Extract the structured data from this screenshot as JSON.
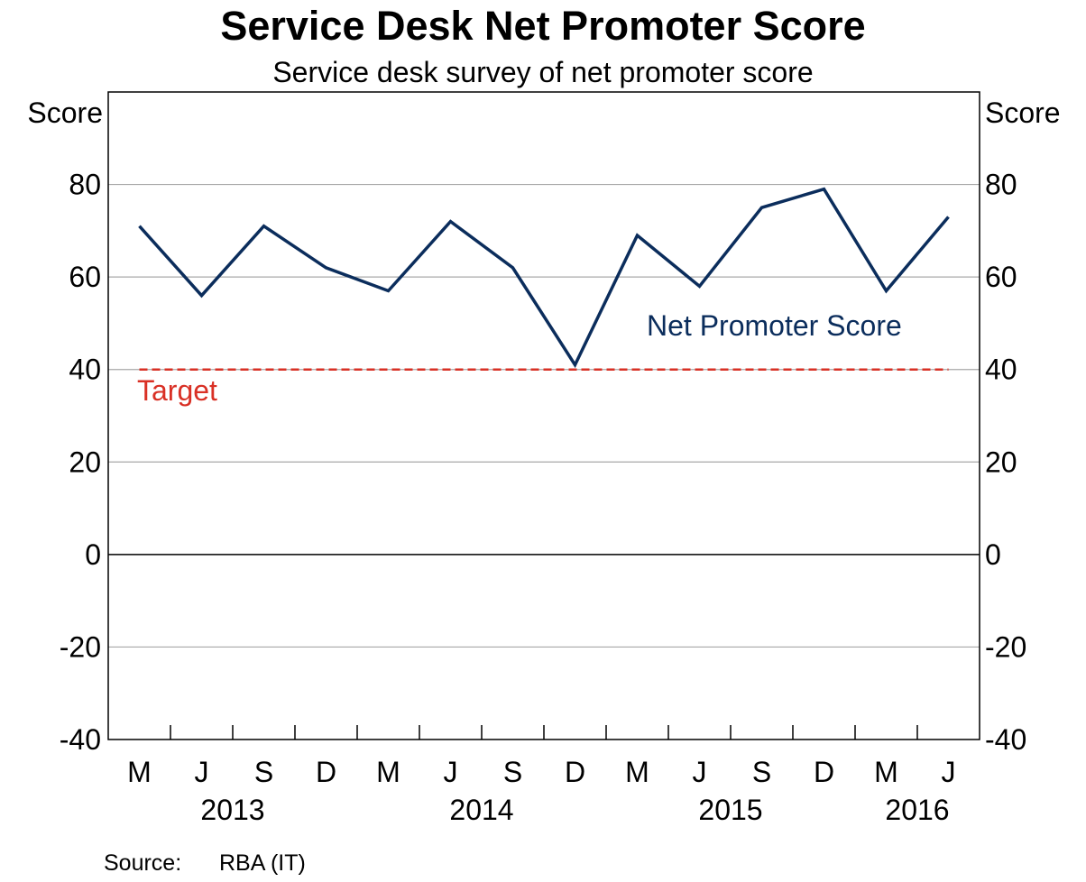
{
  "chart_data": {
    "type": "line",
    "title": "Service Desk Net Promoter Score",
    "subtitle": "Service desk survey of net promoter score",
    "ylabel_left": "Score",
    "ylabel_right": "Score",
    "ylim": [
      -40,
      100
    ],
    "yticks": [
      -40,
      -20,
      0,
      20,
      40,
      60,
      80
    ],
    "x_periods": [
      "M",
      "J",
      "S",
      "D",
      "M",
      "J",
      "S",
      "D",
      "M",
      "J",
      "S",
      "D",
      "M",
      "J"
    ],
    "years": [
      {
        "label": "2013",
        "start": 0,
        "end": 4
      },
      {
        "label": "2014",
        "start": 4,
        "end": 8
      },
      {
        "label": "2015",
        "start": 8,
        "end": 12
      },
      {
        "label": "2016",
        "start": 12,
        "end": 14
      }
    ],
    "series": [
      {
        "name": "Net Promoter Score",
        "color": "#0b2d5c",
        "values": [
          71,
          56,
          71,
          62,
          57,
          72,
          62,
          41,
          69,
          58,
          75,
          79,
          57,
          73
        ]
      },
      {
        "name": "Target",
        "color": "#d93025",
        "style": "dashed",
        "values": [
          40,
          40,
          40,
          40,
          40,
          40,
          40,
          40,
          40,
          40,
          40,
          40,
          40,
          40
        ]
      }
    ]
  },
  "footer": {
    "source_label": "Source:",
    "source_value": "RBA (IT)"
  }
}
